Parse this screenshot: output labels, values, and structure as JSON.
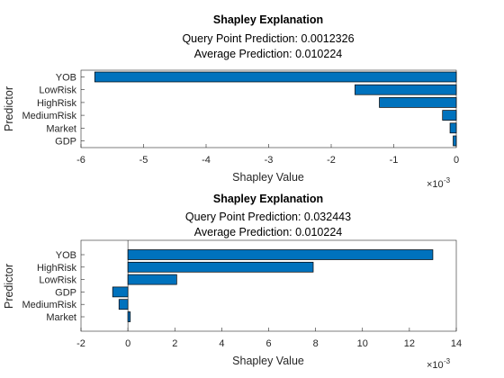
{
  "chart_data": [
    {
      "type": "bar",
      "orientation": "horizontal",
      "title": "Shapley Explanation",
      "subtitle": [
        "Query Point Prediction: 0.0012326",
        "Average Prediction: 0.010224"
      ],
      "xlabel": "Shapley Value",
      "ylabel": "Predictor",
      "x_exponent": "×10",
      "x_exponent_power": "-3",
      "xlim": [
        -6,
        0
      ],
      "xticks": [
        -6,
        -5,
        -4,
        -3,
        -2,
        -1,
        0
      ],
      "xtick_labels": [
        "-6",
        "-5",
        "-4",
        "-3",
        "-2",
        "-1",
        "0"
      ],
      "categories": [
        "YOB",
        "LowRisk",
        "HighRisk",
        "MediumRisk",
        "Market",
        "GDP"
      ],
      "values": [
        -5.78,
        -1.62,
        -1.23,
        -0.22,
        -0.1,
        -0.05
      ],
      "bar_color": "#0072BD",
      "grid": false
    },
    {
      "type": "bar",
      "orientation": "horizontal",
      "title": "Shapley Explanation",
      "subtitle": [
        "Query Point Prediction: 0.032443",
        "Average Prediction: 0.010224"
      ],
      "xlabel": "Shapley Value",
      "ylabel": "Predictor",
      "x_exponent": "×10",
      "x_exponent_power": "-3",
      "xlim": [
        -2,
        14
      ],
      "xticks": [
        -2,
        0,
        2,
        4,
        6,
        8,
        10,
        12,
        14
      ],
      "xtick_labels": [
        "-2",
        "0",
        "2",
        "4",
        "6",
        "8",
        "10",
        "12",
        "14"
      ],
      "categories": [
        "YOB",
        "HighRisk",
        "LowRisk",
        "GDP",
        "MediumRisk",
        "Market"
      ],
      "values": [
        13.0,
        7.9,
        2.08,
        -0.65,
        -0.38,
        0.1
      ],
      "bar_color": "#0072BD",
      "grid": false
    }
  ]
}
